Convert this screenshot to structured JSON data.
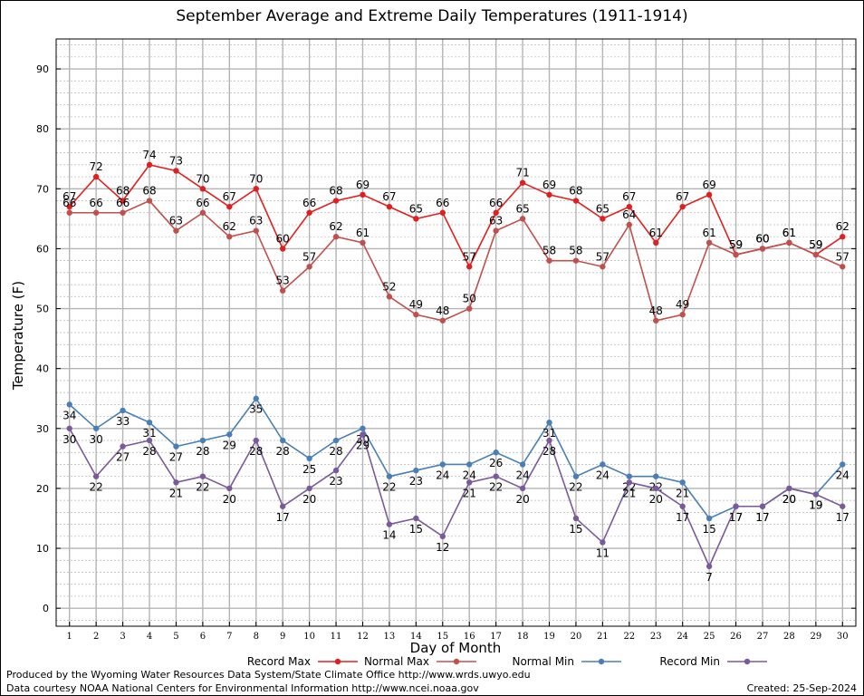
{
  "colors": {
    "record_max": "#e02020",
    "normal_max": "#c0504d",
    "normal_min": "#4a7fb5",
    "record_min": "#7a5a9a",
    "grid": "#b4b4b4"
  },
  "footer": {
    "credit_line_1": "Produced by the Wyoming Water Resources Data System/State Climate Office http://www.wrds.uwyo.edu",
    "credit_line_2": "Data courtesy NOAA National Centers for Environmental Information http://www.ncei.noaa.gov",
    "created": "Created:  25-Sep-2024"
  },
  "chart_data": {
    "type": "line",
    "title": "September Average and Extreme Daily Temperatures (1911-1914)",
    "xlabel": "Day of Month",
    "ylabel": "Temperature (F)",
    "xlim": [
      0.5,
      30.5
    ],
    "ylim": [
      -3,
      95
    ],
    "yticks": [
      0,
      10,
      20,
      30,
      40,
      50,
      60,
      70,
      80,
      90
    ],
    "grid": true,
    "legend_position": "bottom",
    "x": [
      1,
      2,
      3,
      4,
      5,
      6,
      7,
      8,
      9,
      10,
      11,
      12,
      13,
      14,
      15,
      16,
      17,
      18,
      19,
      20,
      21,
      22,
      23,
      24,
      25,
      26,
      27,
      28,
      29,
      30
    ],
    "series": [
      {
        "name": "Record Max",
        "color_key": "record_max",
        "label_pos": "above",
        "values": [
          67,
          72,
          68,
          74,
          73,
          70,
          67,
          70,
          60,
          66,
          68,
          69,
          67,
          65,
          66,
          57,
          66,
          71,
          69,
          68,
          65,
          67,
          61,
          67,
          69,
          59,
          60,
          61,
          59,
          62
        ]
      },
      {
        "name": "Normal Max",
        "color_key": "normal_max",
        "label_pos": "above",
        "values": [
          66,
          66,
          66,
          68,
          63,
          66,
          62,
          63,
          53,
          57,
          62,
          61,
          52,
          49,
          48,
          50,
          63,
          65,
          58,
          58,
          57,
          64,
          48,
          49,
          61,
          59,
          60,
          61,
          59,
          57
        ]
      },
      {
        "name": "Normal Min",
        "color_key": "normal_min",
        "label_pos": "below",
        "values": [
          34,
          30,
          33,
          31,
          27,
          28,
          29,
          35,
          28,
          25,
          28,
          30,
          22,
          23,
          24,
          24,
          26,
          24,
          31,
          22,
          24,
          22,
          22,
          21,
          15,
          17,
          17,
          20,
          19,
          24
        ]
      },
      {
        "name": "Record Min",
        "color_key": "record_min",
        "label_pos": "below",
        "values": [
          30,
          22,
          27,
          28,
          21,
          22,
          20,
          28,
          17,
          20,
          23,
          29,
          14,
          15,
          12,
          21,
          22,
          20,
          28,
          15,
          11,
          21,
          20,
          17,
          7,
          17,
          17,
          20,
          19,
          17
        ]
      }
    ]
  }
}
